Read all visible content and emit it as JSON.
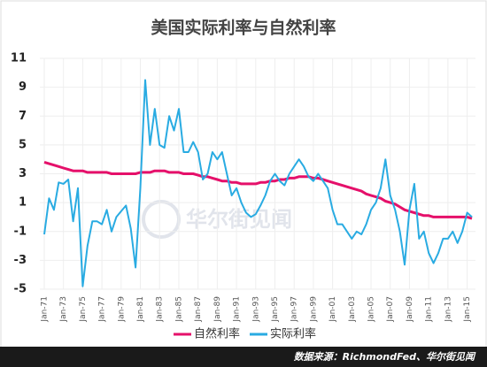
{
  "chart_data": {
    "type": "line",
    "title": "美国实际利率与自然利率",
    "watermark": "华尔街见闻",
    "source": "数据来源：RichmondFed、华尔街见闻",
    "categories": [
      "Jan-71",
      null,
      null,
      null,
      "Jan-73",
      null,
      null,
      null,
      "Jan-75",
      null,
      null,
      null,
      "Jan-77",
      null,
      null,
      null,
      "Jan-79",
      null,
      null,
      null,
      "Jan-81",
      null,
      null,
      null,
      "Jan-83",
      null,
      null,
      null,
      "Jan-85",
      null,
      null,
      null,
      "Jan-87",
      null,
      null,
      null,
      "Jan-89",
      null,
      null,
      null,
      "Jan-91",
      null,
      null,
      null,
      "Jan-93",
      null,
      null,
      null,
      "Jan-95",
      null,
      null,
      null,
      "Jan-97",
      null,
      null,
      null,
      "Jan-99",
      null,
      null,
      null,
      "Jan-01",
      null,
      null,
      null,
      "Jan-03",
      null,
      null,
      null,
      "Jan-05",
      null,
      null,
      null,
      "Jan-07",
      null,
      null,
      null,
      "Jan-09",
      null,
      null,
      null,
      "Jan-11",
      null,
      null,
      null,
      "Jan-13",
      null,
      null,
      null,
      "Jan-15",
      null
    ],
    "series": [
      {
        "name": "自然利率",
        "color": "#e5106a",
        "values": [
          3.8,
          3.7,
          3.6,
          3.5,
          3.4,
          3.3,
          3.2,
          3.2,
          3.2,
          3.1,
          3.1,
          3.1,
          3.1,
          3.1,
          3.0,
          3.0,
          3.0,
          3.0,
          3.0,
          3.0,
          3.1,
          3.1,
          3.1,
          3.2,
          3.2,
          3.2,
          3.1,
          3.1,
          3.1,
          3.0,
          3.0,
          3.0,
          2.9,
          2.8,
          2.8,
          2.7,
          2.6,
          2.5,
          2.5,
          2.4,
          2.4,
          2.3,
          2.3,
          2.3,
          2.3,
          2.4,
          2.4,
          2.5,
          2.5,
          2.6,
          2.6,
          2.7,
          2.7,
          2.8,
          2.8,
          2.8,
          2.7,
          2.7,
          2.6,
          2.5,
          2.4,
          2.3,
          2.2,
          2.1,
          2.0,
          1.9,
          1.8,
          1.6,
          1.5,
          1.4,
          1.3,
          1.1,
          1.0,
          0.9,
          0.7,
          0.5,
          0.4,
          0.3,
          0.2,
          0.1,
          0.1,
          0.0,
          0.0,
          0.0,
          0.0,
          0.0,
          0.0,
          0.0,
          0.0,
          -0.1
        ]
      },
      {
        "name": "实际利率",
        "color": "#29abe2",
        "values": [
          -1.2,
          1.3,
          0.5,
          2.4,
          2.3,
          2.6,
          -0.3,
          2.0,
          -4.8,
          -2.0,
          -0.3,
          -0.3,
          -0.5,
          0.5,
          -1.0,
          0.0,
          0.4,
          0.8,
          -0.8,
          -3.5,
          2.0,
          9.5,
          5.0,
          7.5,
          5.0,
          4.8,
          7.0,
          6.0,
          7.5,
          4.5,
          4.5,
          5.2,
          4.5,
          2.6,
          3.0,
          4.5,
          4.0,
          4.5,
          3.0,
          1.5,
          2.0,
          1.0,
          0.3,
          0.0,
          0.2,
          0.8,
          1.5,
          2.5,
          3.0,
          2.5,
          2.2,
          3.0,
          3.5,
          4.0,
          3.5,
          2.8,
          2.5,
          3.0,
          2.5,
          2.0,
          0.5,
          -0.5,
          -0.5,
          -1.0,
          -1.5,
          -1.0,
          -1.2,
          -0.5,
          0.5,
          1.0,
          2.0,
          4.0,
          1.5,
          0.5,
          -1.0,
          -3.3,
          0.5,
          2.3,
          -1.5,
          -1.0,
          -2.5,
          -3.2,
          -2.5,
          -1.5,
          -1.5,
          -1.0,
          -1.8,
          -1.0,
          0.3,
          0.0
        ]
      }
    ],
    "ylim": [
      -5,
      11
    ],
    "yticks": [
      -5,
      -3,
      -1,
      1,
      3,
      5,
      7,
      9,
      11
    ],
    "grid": true,
    "legend": "bottom"
  }
}
